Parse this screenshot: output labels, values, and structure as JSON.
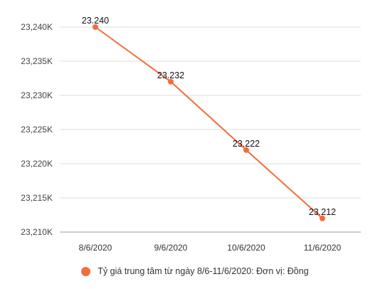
{
  "chart_data": {
    "type": "line",
    "categories": [
      "8/6/2020",
      "9/6/2020",
      "10/6/2020",
      "11/6/2020"
    ],
    "series": [
      {
        "name": "Tỷ giá trung tâm từ ngày 8/6-11/6/2020: Đơn vị: Đồng",
        "values": [
          23240,
          23232,
          23222,
          23212
        ],
        "data_labels": [
          "23.240",
          "23.232",
          "23.222",
          "23.212"
        ],
        "color": "#f26d3d"
      }
    ],
    "y_ticks": [
      23210,
      23215,
      23220,
      23225,
      23230,
      23235,
      23240
    ],
    "y_tick_labels": [
      "23,210K",
      "23,215K",
      "23,220K",
      "23,225K",
      "23,230K",
      "23,235K",
      "23,240K"
    ],
    "ylim": [
      23210,
      23240
    ],
    "grid": true,
    "legend_position": "bottom"
  },
  "colors": {
    "series": "#f26d3d",
    "grid": "#dddddd"
  }
}
